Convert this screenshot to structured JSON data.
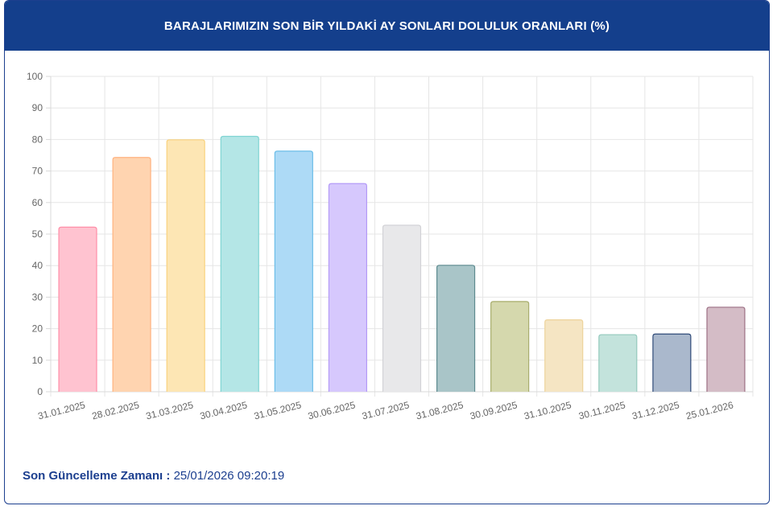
{
  "header": {
    "title": "BARAJLARIMIZIN SON BİR YILDAKİ AY SONLARI DOLULUK ORANLARI (%)"
  },
  "footer": {
    "label": "Son Güncelleme Zamanı :",
    "value": "25/01/2026 09:20:19"
  },
  "chart_data": {
    "type": "bar",
    "title": "BARAJLARIMIZIN SON BİR YILDAKİ AY SONLARI DOLULUK ORANLARI (%)",
    "categories": [
      "31.01.2025",
      "28.02.2025",
      "31.03.2025",
      "30.04.2025",
      "31.05.2025",
      "30.06.2025",
      "31.07.2025",
      "31.08.2025",
      "30.09.2025",
      "31.10.2025",
      "30.11.2025",
      "31.12.2025",
      "25.01.2026"
    ],
    "values": [
      52.2,
      74.3,
      79.9,
      81.0,
      76.3,
      66.0,
      52.8,
      40.1,
      28.6,
      22.8,
      18.1,
      18.3,
      26.8
    ],
    "ylim": [
      0,
      100
    ],
    "yticks": [
      0,
      10,
      20,
      30,
      40,
      50,
      60,
      70,
      80,
      90,
      100
    ],
    "grid": true,
    "fills": [
      "#ffc3d0",
      "#ffd4b0",
      "#fde6b4",
      "#b4e6e6",
      "#addaf6",
      "#d6c8fd",
      "#e8e8ea",
      "#a9c5c8",
      "#d5d8ad",
      "#f5e5c3",
      "#c3e3dc",
      "#aab8cc",
      "#d4bcc6"
    ],
    "borders": [
      "#ff8fa8",
      "#ffb380",
      "#f9d27e",
      "#7fd4d2",
      "#6cbde8",
      "#b49af7",
      "#d2d2d6",
      "#5d8a8f",
      "#a8ad6c",
      "#eed39b",
      "#93c9bd",
      "#2e4a78",
      "#9d6f84"
    ]
  }
}
